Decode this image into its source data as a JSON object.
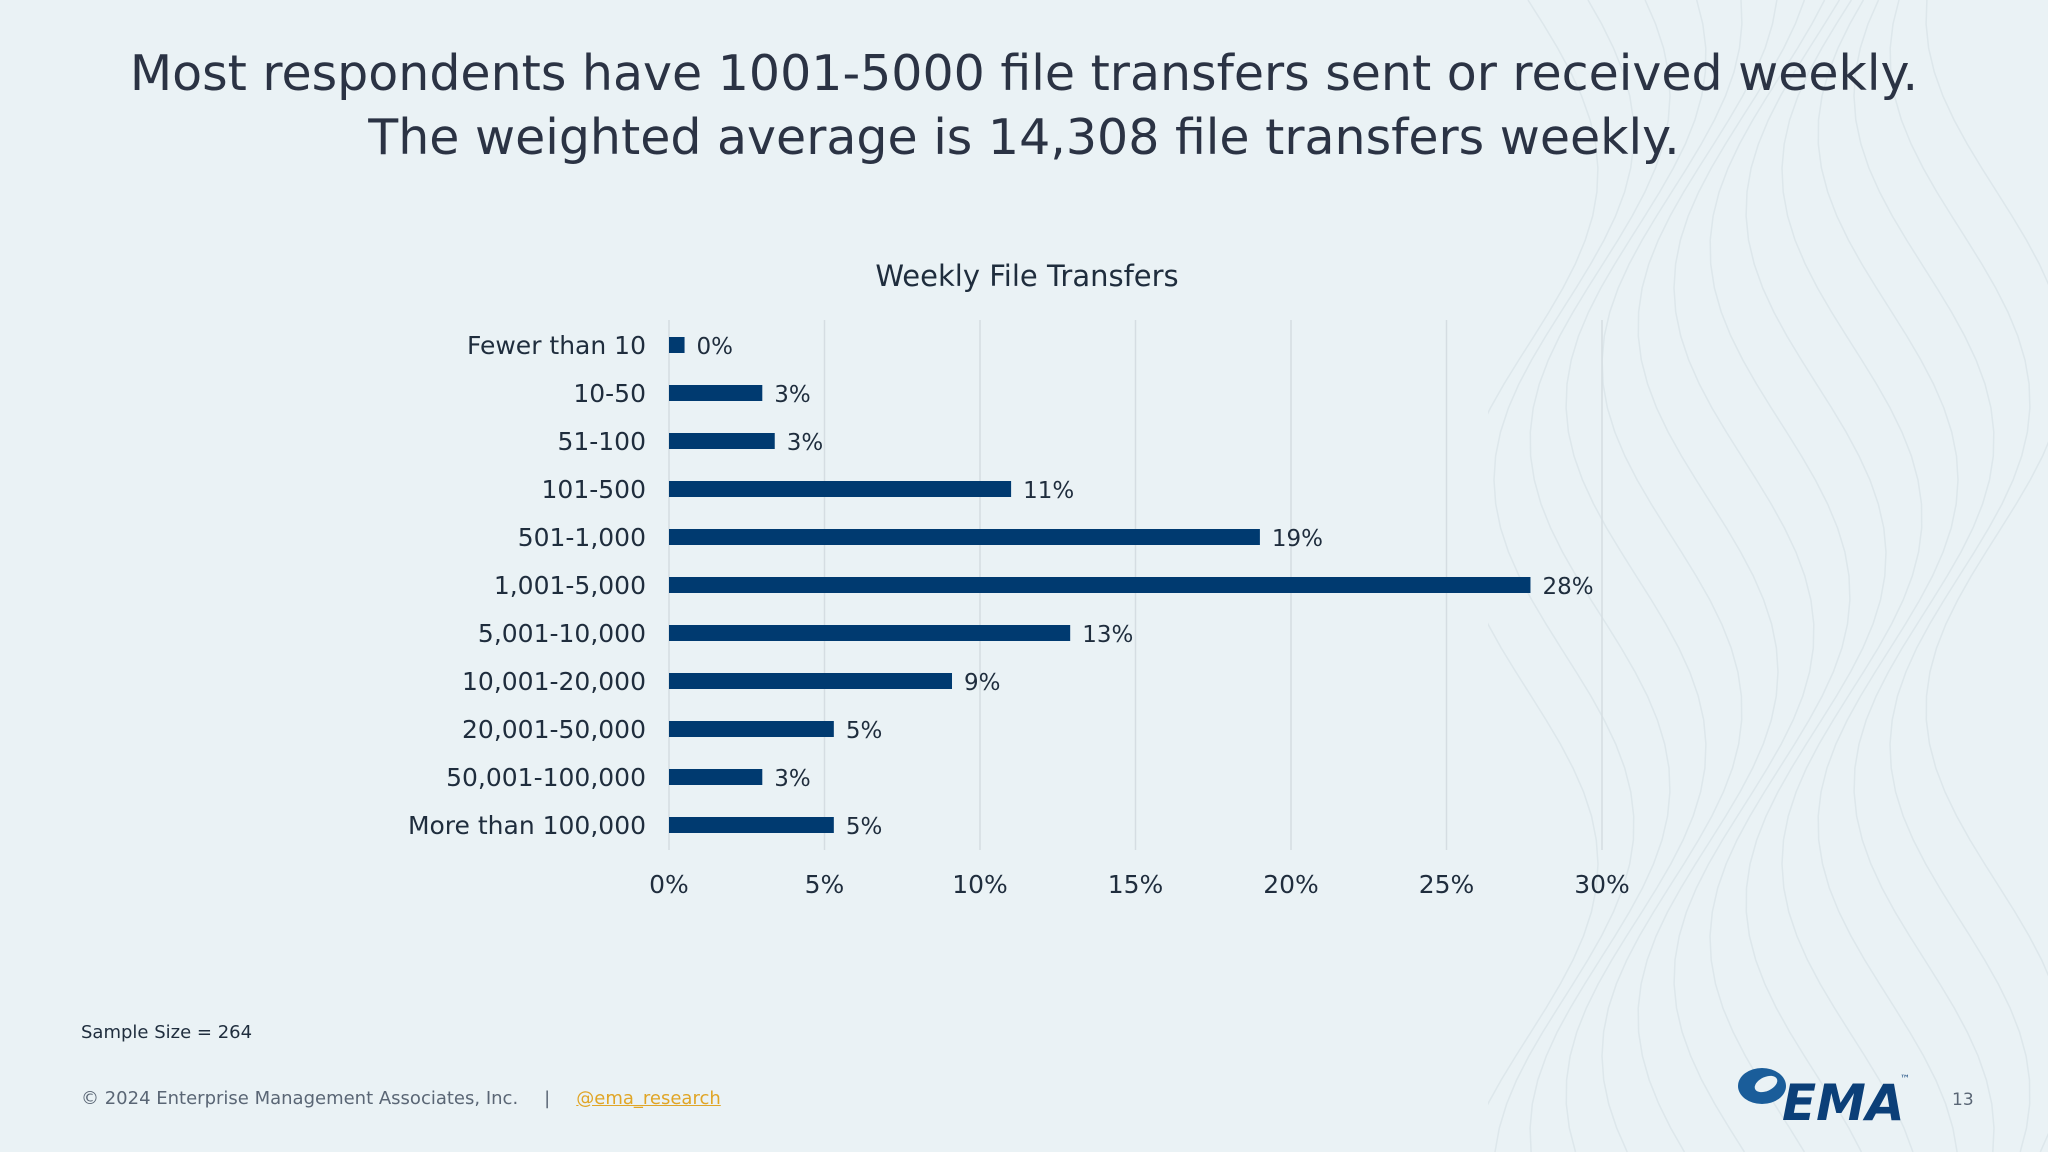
{
  "slide": {
    "headline_line1": "Most respondents have 1001-5000 file transfers sent or received weekly.",
    "headline_line2": "The weighted average is 14,308 file transfers weekly.",
    "sample_size": "Sample Size = 264",
    "copyright": "© 2024 Enterprise Management Associates, Inc.",
    "separator": "|",
    "social_handle": "@ema_research",
    "page_number": "13",
    "logo_text": "EMA",
    "logo_tm": "™"
  },
  "colors": {
    "bar": "#003a70",
    "grid": "#d5dde2",
    "background": "#eaf2f5"
  },
  "chart_data": {
    "type": "bar",
    "orientation": "horizontal",
    "title": "Weekly File Transfers",
    "xlabel": "",
    "ylabel": "",
    "categories": [
      "Fewer than 10",
      "10-50",
      "51-100",
      "101-500",
      "501-1,000",
      "1,001-5,000",
      "5,001-10,000",
      "10,001-20,000",
      "20,001-50,000",
      "50,001-100,000",
      "More than 100,000"
    ],
    "values": [
      0.5,
      3,
      3.4,
      11,
      19,
      27.7,
      12.9,
      9.1,
      5.3,
      3,
      5.3
    ],
    "data_labels": [
      "0%",
      "3%",
      "3%",
      "11%",
      "19%",
      "28%",
      "13%",
      "9%",
      "5%",
      "3%",
      "5%"
    ],
    "xlim": [
      0,
      30
    ],
    "xticks": [
      0,
      5,
      10,
      15,
      20,
      25,
      30
    ],
    "xtick_labels": [
      "0%",
      "5%",
      "10%",
      "15%",
      "20%",
      "25%",
      "30%"
    ],
    "grid": true,
    "legend": "none"
  }
}
